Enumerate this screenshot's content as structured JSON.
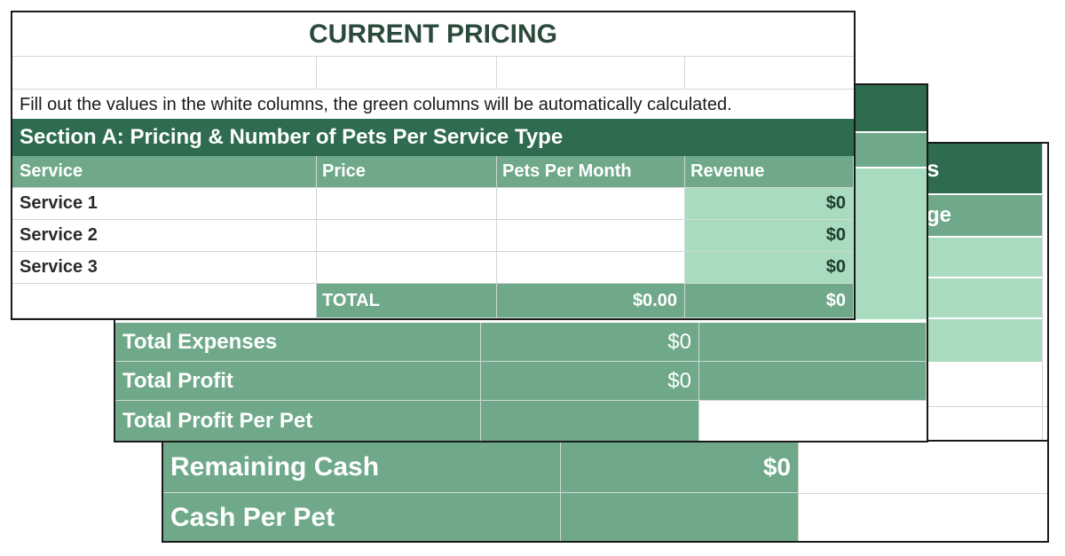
{
  "back_sheet": {
    "header_fragment": "s",
    "subheader_fragment": "ge"
  },
  "middle_sheet": {
    "rows": [
      {
        "label": "Total Expenses",
        "value": "$0"
      },
      {
        "label": "Total Profit",
        "value": "$0"
      },
      {
        "label": "Total Profit Per Pet",
        "value": ""
      }
    ]
  },
  "cash_sheet": {
    "rows": [
      {
        "label": "Remaining Cash",
        "value": "$0"
      },
      {
        "label": "Cash Per Pet",
        "value": ""
      }
    ]
  },
  "pricing": {
    "title": "CURRENT PRICING",
    "instructions": "Fill out the values in the white columns, the green columns will be automatically calculated.",
    "section_title": "Section A: Pricing & Number of Pets Per Service Type",
    "columns": [
      "Service",
      "Price",
      "Pets Per Month",
      "Revenue"
    ],
    "rows": [
      {
        "service": "Service 1",
        "price": "",
        "pets": "",
        "revenue": "$0"
      },
      {
        "service": "Service 2",
        "price": "",
        "pets": "",
        "revenue": "$0"
      },
      {
        "service": "Service 3",
        "price": "",
        "pets": "",
        "revenue": "$0"
      }
    ],
    "total": {
      "label": "TOTAL",
      "pets": "$0.00",
      "revenue": "$0"
    }
  },
  "colors": {
    "dark_green": "#2e6b4f",
    "mid_green": "#6fa98a",
    "light_green": "#a9dcbf",
    "border": "#1a1a1a"
  }
}
